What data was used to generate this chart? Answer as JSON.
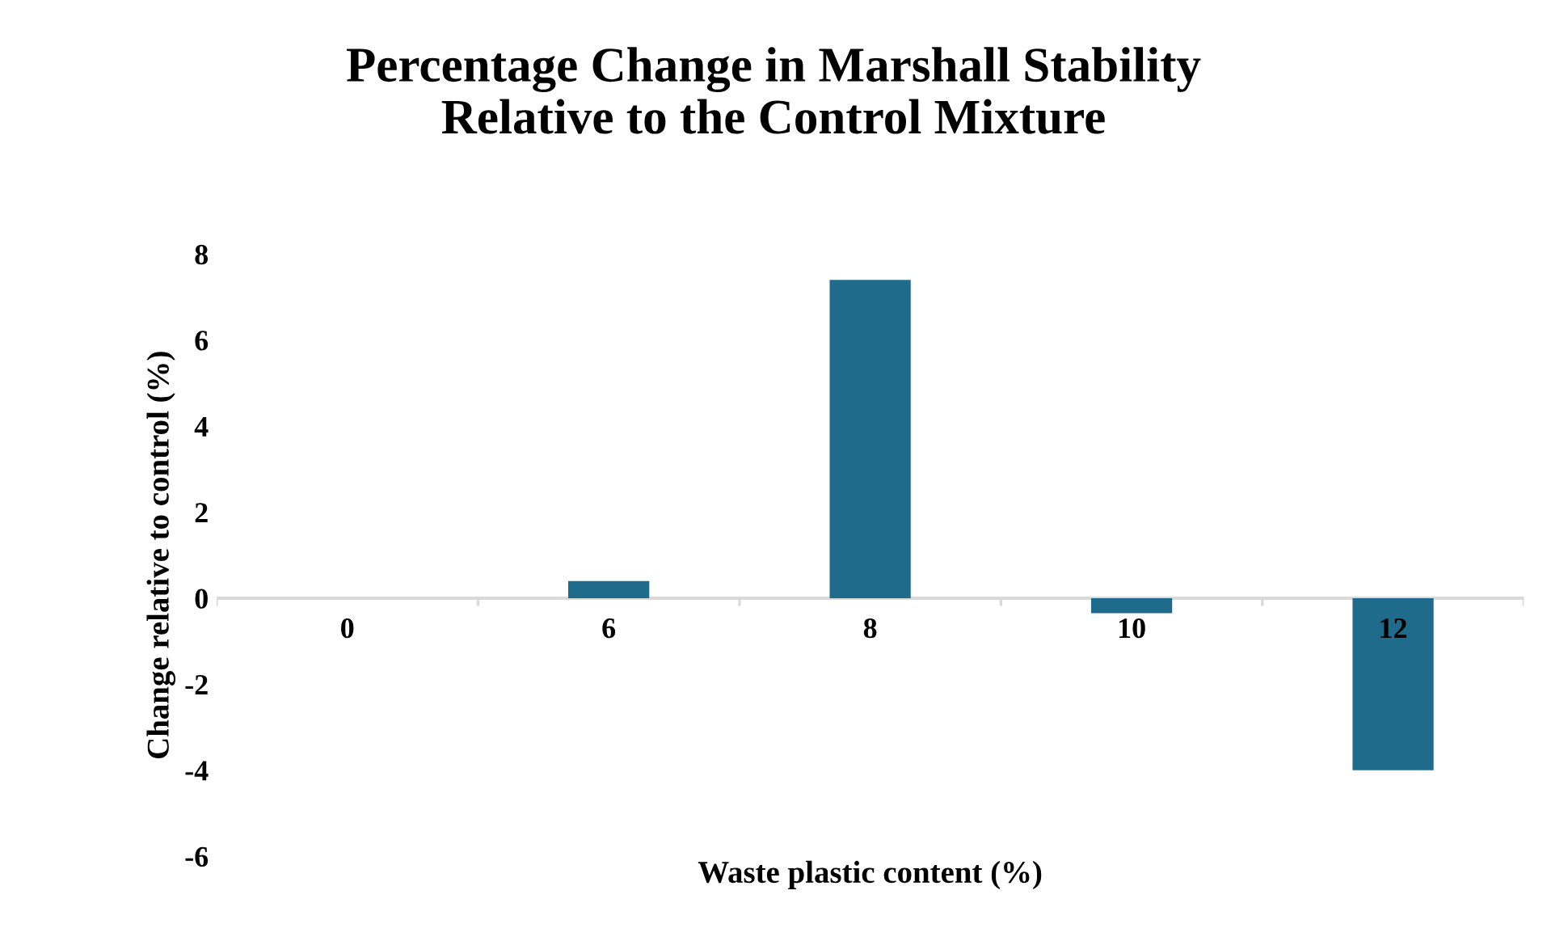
{
  "chart_data": {
    "type": "bar",
    "title": "Percentage Change in Marshall Stability\nRelative to the Control Mixture",
    "xlabel": "Waste plastic content (%)",
    "ylabel": "Change relative to control (%)",
    "categories": [
      "0",
      "6",
      "8",
      "10",
      "12"
    ],
    "values": [
      0,
      0.4,
      7.4,
      -0.35,
      -4.0
    ],
    "color": "#1f6b8b",
    "ylim": [
      -6,
      8
    ],
    "yticks": [
      -6,
      -4,
      -2,
      0,
      2,
      4,
      6,
      8
    ],
    "grid": false
  }
}
